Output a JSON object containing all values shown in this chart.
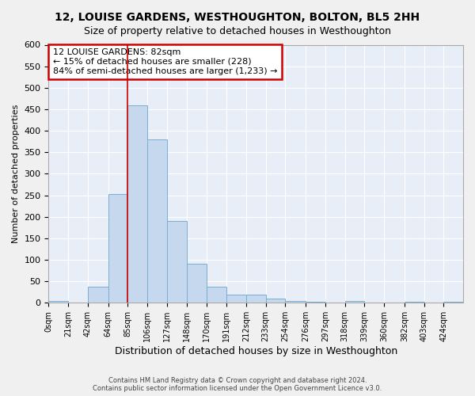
{
  "title": "12, LOUISE GARDENS, WESTHOUGHTON, BOLTON, BL5 2HH",
  "subtitle": "Size of property relative to detached houses in Westhoughton",
  "xlabel": "Distribution of detached houses by size in Westhoughton",
  "ylabel": "Number of detached properties",
  "bar_color": "#c5d8ed",
  "bar_edge_color": "#7aaed0",
  "bins": [
    "0sqm",
    "21sqm",
    "42sqm",
    "64sqm",
    "85sqm",
    "106sqm",
    "127sqm",
    "148sqm",
    "170sqm",
    "191sqm",
    "212sqm",
    "233sqm",
    "254sqm",
    "276sqm",
    "297sqm",
    "318sqm",
    "339sqm",
    "360sqm",
    "382sqm",
    "403sqm",
    "424sqm"
  ],
  "bin_edges": [
    0,
    21,
    42,
    64,
    85,
    106,
    127,
    148,
    170,
    191,
    212,
    233,
    254,
    276,
    297,
    318,
    339,
    360,
    382,
    403,
    424,
    445
  ],
  "values": [
    4,
    0,
    37,
    253,
    460,
    380,
    190,
    91,
    37,
    19,
    19,
    10,
    5,
    2,
    0,
    4,
    0,
    0,
    2,
    0,
    2
  ],
  "ylim": [
    0,
    600
  ],
  "yticks": [
    0,
    50,
    100,
    150,
    200,
    250,
    300,
    350,
    400,
    450,
    500,
    550,
    600
  ],
  "vline_x": 85,
  "annotation_title": "12 LOUISE GARDENS: 82sqm",
  "annotation_line1": "← 15% of detached houses are smaller (228)",
  "annotation_line2": "84% of semi-detached houses are larger (1,233) →",
  "annotation_box_color": "#ffffff",
  "annotation_edge_color": "#cc0000",
  "vline_color": "#cc0000",
  "background_color": "#e8eef8",
  "grid_color": "#ffffff",
  "footer1": "Contains HM Land Registry data © Crown copyright and database right 2024.",
  "footer2": "Contains public sector information licensed under the Open Government Licence v3.0."
}
